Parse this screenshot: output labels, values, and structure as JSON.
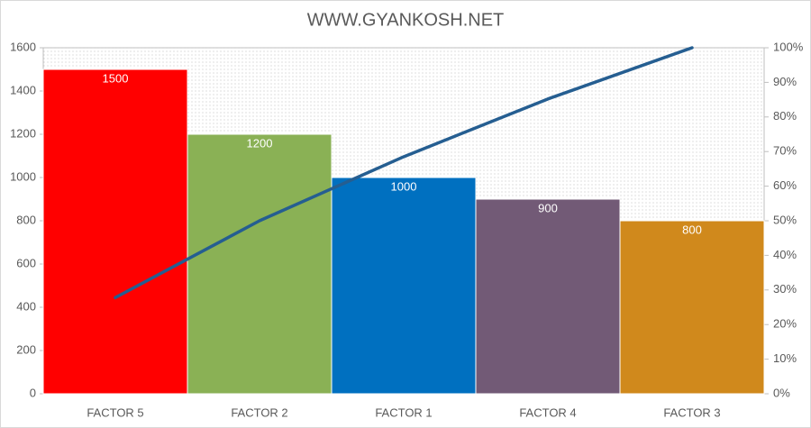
{
  "chart_data": {
    "type": "pareto",
    "title": "WWW.GYANKOSH.NET",
    "categories": [
      "FACTOR 5",
      "FACTOR 2",
      "FACTOR 1",
      "FACTOR 4",
      "FACTOR 3"
    ],
    "series": [
      {
        "type": "bar",
        "values": [
          1500,
          1200,
          1000,
          900,
          800
        ],
        "colors": [
          "#ff0000",
          "#8ab155",
          "#0070c0",
          "#725a76",
          "#d0891c"
        ]
      },
      {
        "type": "line",
        "axis": "y2",
        "color": "#255e91",
        "values": [
          27.8,
          50,
          68.5,
          85.2,
          100
        ]
      }
    ],
    "ylim": [
      0,
      1600
    ],
    "yticks": [
      0,
      200,
      400,
      600,
      800,
      1000,
      1200,
      1400,
      1600
    ],
    "y2lim": [
      0,
      100
    ],
    "y2ticks": [
      {
        "value": 0,
        "label": "0%"
      },
      {
        "value": 10,
        "label": "10%"
      },
      {
        "value": 20,
        "label": "20%"
      },
      {
        "value": 30,
        "label": "30%"
      },
      {
        "value": 40,
        "label": "40%"
      },
      {
        "value": 50,
        "label": "50%"
      },
      {
        "value": 60,
        "label": "60%"
      },
      {
        "value": 70,
        "label": "70%"
      },
      {
        "value": 80,
        "label": "80%"
      },
      {
        "value": 90,
        "label": "90%"
      },
      {
        "value": 100,
        "label": "100%"
      }
    ]
  }
}
